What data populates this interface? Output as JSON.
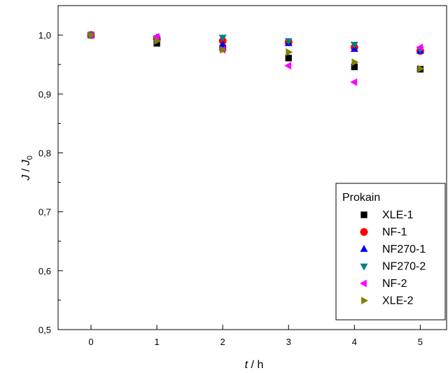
{
  "chart_data": {
    "type": "scatter",
    "xlabel": {
      "var": "t",
      "unit": " / h"
    },
    "ylabel": {
      "var": "J",
      "sep": " / ",
      "var2": "J",
      "sub": "0"
    },
    "xlim": [
      -0.5,
      5.4
    ],
    "ylim": [
      0.5,
      1.05
    ],
    "x_ticks": [
      0,
      1,
      2,
      3,
      4,
      5
    ],
    "x_tick_labels": [
      "0",
      "1",
      "2",
      "3",
      "4",
      "5"
    ],
    "y_ticks": [
      0.5,
      0.6,
      0.7,
      0.8,
      0.9,
      1.0
    ],
    "y_tick_labels": [
      "0,5",
      "0,6",
      "0,7",
      "0,8",
      "0,9",
      "1,0"
    ],
    "grid": false,
    "legend": {
      "title": "Prokain",
      "placement": "bottom-right"
    },
    "series": [
      {
        "name": "XLE-1",
        "marker": "square",
        "color": "#000000",
        "x": [
          0,
          1,
          2,
          3,
          4,
          5
        ],
        "y": [
          1.0,
          0.986,
          0.978,
          0.961,
          0.946,
          0.942
        ]
      },
      {
        "name": "NF-1",
        "marker": "circle",
        "color": "#ff0000",
        "x": [
          0,
          1,
          2,
          3,
          4,
          5
        ],
        "y": [
          1.0,
          0.994,
          0.99,
          0.988,
          0.979,
          0.973
        ]
      },
      {
        "name": "NF270-1",
        "marker": "triangle-up",
        "color": "#0000ff",
        "x": [
          0,
          1,
          2,
          3,
          4,
          5
        ],
        "y": [
          1.0,
          0.996,
          0.984,
          0.986,
          0.976,
          0.973
        ]
      },
      {
        "name": "NF270-2",
        "marker": "triangle-down",
        "color": "#008080",
        "x": [
          0,
          1,
          2,
          3,
          4,
          5
        ],
        "y": [
          1.0,
          0.995,
          0.996,
          0.99,
          0.984,
          0.976
        ]
      },
      {
        "name": "NF-2",
        "marker": "triangle-left",
        "color": "#ff00ff",
        "x": [
          0,
          1,
          2,
          3,
          4,
          5
        ],
        "y": [
          1.0,
          0.997,
          0.975,
          0.948,
          0.92,
          0.979
        ]
      },
      {
        "name": "XLE-2",
        "marker": "triangle-right",
        "color": "#808000",
        "x": [
          0,
          1,
          2,
          3,
          4,
          5
        ],
        "y": [
          1.0,
          0.99,
          0.975,
          0.971,
          0.954,
          0.943
        ]
      }
    ]
  }
}
